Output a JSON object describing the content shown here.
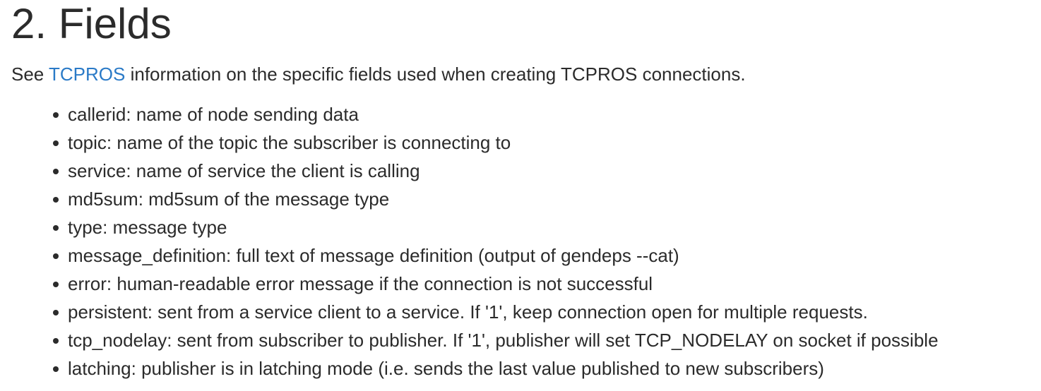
{
  "section": {
    "heading": "2. Fields",
    "intro": {
      "prefix": "See ",
      "link_text": "TCPROS",
      "suffix": " information on the specific fields used when creating TCPROS connections."
    },
    "fields": [
      "callerid: name of node sending data",
      "topic: name of the topic the subscriber is connecting to",
      "service: name of service the client is calling",
      "md5sum: md5sum of the message type",
      "type: message type",
      "message_definition: full text of message definition (output of gendeps --cat)",
      "error: human-readable error message if the connection is not successful",
      "persistent: sent from a service client to a service. If '1', keep connection open for multiple requests.",
      "tcp_nodelay: sent from subscriber to publisher. If '1', publisher will set TCP_NODELAY on socket if possible",
      "latching: publisher is in latching mode (i.e. sends the last value published to new subscribers)"
    ]
  },
  "colors": {
    "text": "#2b2b2b",
    "link": "#2a7ac7",
    "background": "#ffffff"
  }
}
